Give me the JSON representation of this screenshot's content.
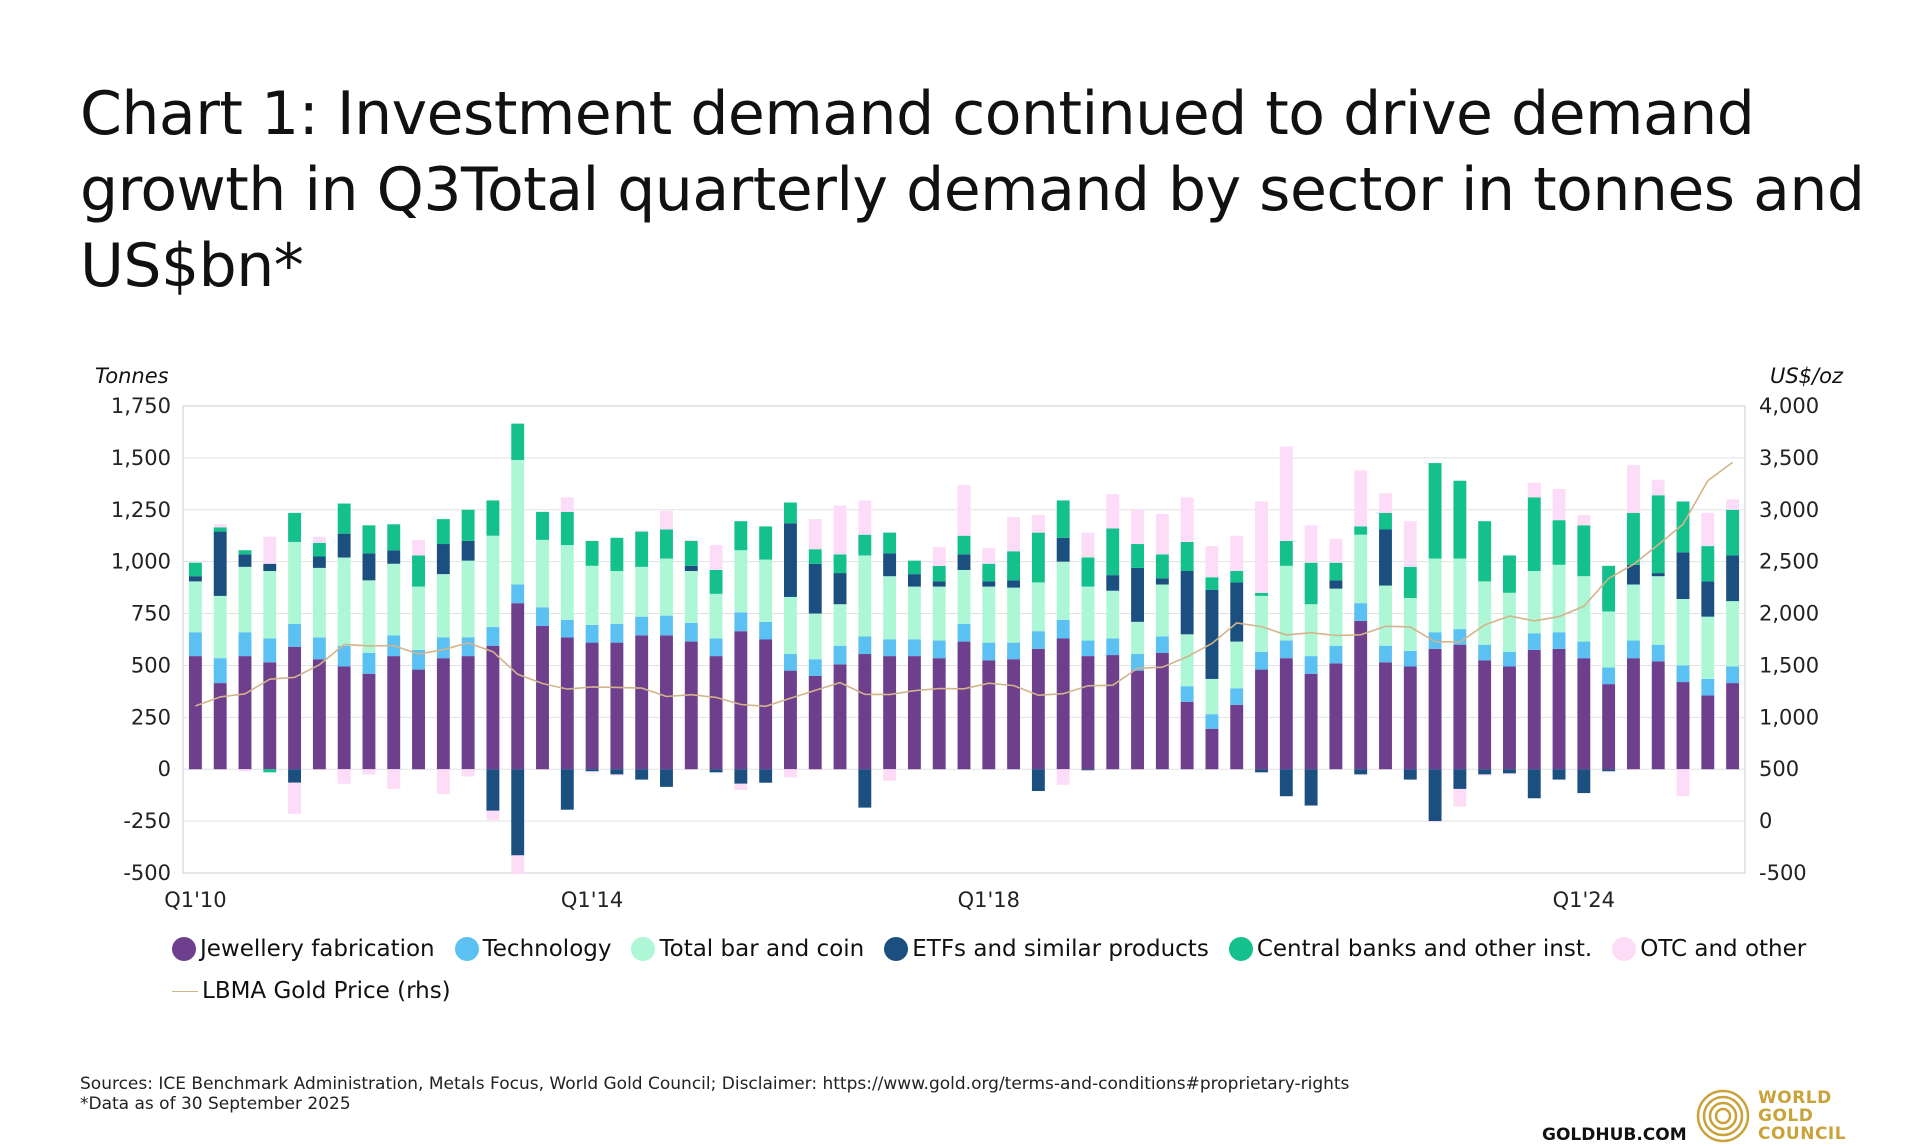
{
  "title": "Chart 1: Investment demand continued to drive demand growth in Q3Total quarterly demand by sector in tonnes and US$bn*",
  "footer": {
    "sources": "Sources: ICE Benchmark Administration, Metals Focus, World Gold Council; Disclaimer: https://www.gold.org/terms-and-conditions#proprietary-rights",
    "data_note": "*Data as of 30 September 2025",
    "site": "GOLDHUB.COM",
    "logo_line1": "WORLD",
    "logo_line2": "GOLD",
    "logo_line3": "COUNCIL"
  },
  "chart_data": {
    "type": "bar",
    "stacked": true,
    "title": "Chart 1: Investment demand continued to drive demand growth in Q3Total quarterly demand by sector in tonnes and US$bn*",
    "ylabel": "Tonnes",
    "y2label": "US$/oz",
    "ylim": [
      -500,
      1750
    ],
    "y2lim": [
      -500,
      4000
    ],
    "yticks": [
      "1,750",
      "1,500",
      "1,250",
      "1,000",
      "750",
      "500",
      "250",
      "0",
      "-250",
      "-500"
    ],
    "y2ticks": [
      "4,000",
      "3,500",
      "3,000",
      "2,500",
      "2,000",
      "1,500",
      "1,000",
      "500",
      "0",
      "-500"
    ],
    "x_tick_labels": [
      {
        "index": 0,
        "label": "Q1'10"
      },
      {
        "index": 16,
        "label": "Q1'14"
      },
      {
        "index": 32,
        "label": "Q1'18"
      },
      {
        "index": 56,
        "label": "Q1'24"
      }
    ],
    "categories": [
      "Q1'10",
      "Q2'10",
      "Q3'10",
      "Q4'10",
      "Q1'11",
      "Q2'11",
      "Q3'11",
      "Q4'11",
      "Q1'12",
      "Q2'12",
      "Q3'12",
      "Q4'12",
      "Q1'13",
      "Q2'13",
      "Q3'13",
      "Q4'13",
      "Q1'14",
      "Q2'14",
      "Q3'14",
      "Q4'14",
      "Q1'15",
      "Q2'15",
      "Q3'15",
      "Q4'15",
      "Q1'16",
      "Q2'16",
      "Q3'16",
      "Q4'16",
      "Q1'17",
      "Q2'17",
      "Q3'17",
      "Q4'17",
      "Q1'18",
      "Q2'18",
      "Q3'18",
      "Q4'18",
      "Q1'19",
      "Q2'19",
      "Q3'19",
      "Q4'19",
      "Q1'20",
      "Q2'20",
      "Q3'20",
      "Q4'20",
      "Q1'21",
      "Q2'21",
      "Q3'21",
      "Q4'21",
      "Q1'22",
      "Q2'22",
      "Q3'22",
      "Q4'22",
      "Q1'23",
      "Q2'23",
      "Q3'23",
      "Q4'23",
      "Q1'24",
      "Q2'24",
      "Q3'24",
      "Q4'24",
      "Q1'25",
      "Q2'25",
      "Q3'25"
    ],
    "series": [
      {
        "name": "Jewellery fabrication",
        "color": "#6e3f8c",
        "axis": "left",
        "values": [
          545,
          415,
          545,
          515,
          590,
          530,
          495,
          460,
          545,
          480,
          535,
          545,
          595,
          800,
          690,
          635,
          610,
          610,
          645,
          645,
          615,
          545,
          665,
          625,
          475,
          450,
          505,
          555,
          545,
          545,
          535,
          615,
          525,
          530,
          580,
          630,
          545,
          550,
          475,
          560,
          325,
          195,
          310,
          480,
          535,
          460,
          510,
          715,
          515,
          495,
          580,
          600,
          525,
          495,
          575,
          580,
          535,
          410,
          535,
          520,
          420,
          355,
          415
        ]
      },
      {
        "name": "Technology",
        "color": "#5bc0f2",
        "axis": "left",
        "values": [
          115,
          120,
          115,
          115,
          110,
          105,
          100,
          100,
          100,
          95,
          100,
          90,
          90,
          90,
          90,
          85,
          85,
          90,
          90,
          95,
          90,
          85,
          90,
          85,
          80,
          80,
          90,
          85,
          80,
          80,
          85,
          85,
          85,
          80,
          85,
          90,
          75,
          80,
          80,
          80,
          75,
          70,
          80,
          85,
          85,
          85,
          85,
          85,
          80,
          75,
          80,
          75,
          75,
          70,
          80,
          80,
          80,
          80,
          85,
          80,
          80,
          80,
          80
        ]
      },
      {
        "name": "Total bar and coin",
        "color": "#aef7d6",
        "axis": "left",
        "values": [
          245,
          300,
          315,
          325,
          395,
          335,
          425,
          350,
          345,
          305,
          305,
          370,
          440,
          600,
          325,
          360,
          285,
          255,
          240,
          275,
          250,
          215,
          300,
          300,
          275,
          220,
          200,
          390,
          305,
          255,
          260,
          260,
          270,
          265,
          235,
          280,
          260,
          230,
          155,
          250,
          250,
          170,
          225,
          270,
          360,
          250,
          275,
          330,
          290,
          255,
          355,
          340,
          305,
          285,
          300,
          325,
          315,
          270,
          270,
          330,
          320,
          300,
          315
        ]
      },
      {
        "name": "ETFs and similar products",
        "color": "#1a4f80",
        "axis": "left",
        "values": [
          25,
          310,
          60,
          35,
          -65,
          55,
          115,
          130,
          65,
          0,
          145,
          95,
          -200,
          -415,
          0,
          -195,
          -10,
          -25,
          -50,
          -85,
          25,
          -15,
          -70,
          -65,
          355,
          240,
          150,
          -185,
          110,
          60,
          25,
          75,
          25,
          35,
          -105,
          115,
          -5,
          75,
          260,
          30,
          305,
          430,
          285,
          -15,
          -130,
          -175,
          40,
          -25,
          270,
          -50,
          -250,
          -95,
          -25,
          -20,
          -140,
          -50,
          -115,
          -10,
          95,
          15,
          225,
          170,
          220
        ]
      },
      {
        "name": "Central banks and other inst.",
        "color": "#14c18c",
        "axis": "left",
        "values": [
          65,
          20,
          20,
          -15,
          140,
          65,
          145,
          135,
          125,
          150,
          120,
          150,
          170,
          175,
          135,
          160,
          120,
          160,
          170,
          140,
          120,
          115,
          140,
          160,
          100,
          70,
          90,
          100,
          100,
          65,
          75,
          90,
          85,
          140,
          240,
          180,
          140,
          225,
          115,
          115,
          140,
          60,
          55,
          15,
          120,
          200,
          85,
          40,
          80,
          150,
          460,
          375,
          290,
          180,
          355,
          215,
          245,
          220,
          250,
          375,
          245,
          170,
          220
        ]
      },
      {
        "name": "OTC and other",
        "color": "#fddcf7",
        "axis": "left",
        "values": [
          0,
          15,
          -10,
          130,
          -150,
          30,
          -70,
          -25,
          -95,
          75,
          -120,
          -35,
          -45,
          -90,
          0,
          70,
          -5,
          -5,
          5,
          90,
          5,
          120,
          -30,
          0,
          -40,
          145,
          235,
          165,
          -55,
          0,
          90,
          245,
          75,
          165,
          85,
          -75,
          120,
          165,
          165,
          195,
          215,
          150,
          170,
          440,
          455,
          180,
          115,
          270,
          95,
          220,
          -5,
          -85,
          -5,
          -5,
          70,
          150,
          50,
          -5,
          230,
          75,
          -130,
          160,
          50
        ]
      },
      {
        "name": "LBMA Gold Price (rhs)",
        "color": "#d2b48c",
        "axis": "right",
        "type": "line",
        "values": [
          1109,
          1197,
          1227,
          1367,
          1386,
          1506,
          1702,
          1688,
          1691,
          1609,
          1652,
          1718,
          1632,
          1415,
          1326,
          1272,
          1293,
          1288,
          1282,
          1201,
          1218,
          1192,
          1124,
          1106,
          1183,
          1260,
          1335,
          1222,
          1219,
          1257,
          1278,
          1275,
          1329,
          1306,
          1213,
          1228,
          1304,
          1310,
          1472,
          1483,
          1583,
          1711,
          1909,
          1874,
          1794,
          1816,
          1789,
          1795,
          1877,
          1871,
          1729,
          1726,
          1890,
          1976,
          1929,
          1971,
          2070,
          2338,
          2474,
          2663,
          2860,
          3280,
          3457
        ]
      }
    ]
  }
}
